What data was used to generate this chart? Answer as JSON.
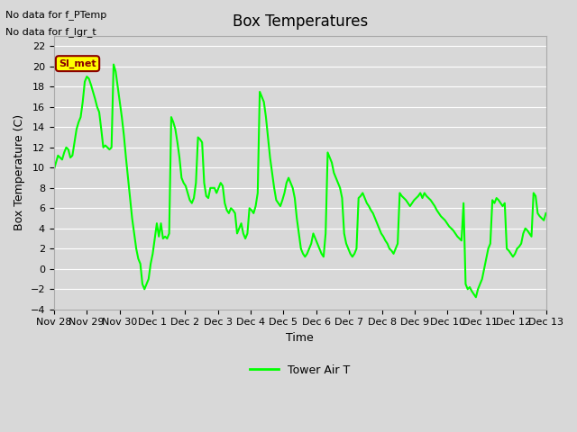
{
  "title": "Box Temperatures",
  "xlabel": "Time",
  "ylabel": "Box Temperature (C)",
  "ylim": [
    -4,
    23
  ],
  "yticks": [
    -4,
    -2,
    0,
    2,
    4,
    6,
    8,
    10,
    12,
    14,
    16,
    18,
    20,
    22
  ],
  "line_color": "#00ff00",
  "line_width": 1.5,
  "bg_color": "#e8e8e8",
  "plot_bg_color": "#d8d8d8",
  "no_data_text1": "No data for f_PTemp",
  "no_data_text2": "No data for f_lgr_t",
  "si_met_label": "Sl_met",
  "legend_label": "Tower Air T",
  "x_tick_labels": [
    "Nov 28",
    "Nov 29",
    "Nov 30",
    "Dec 1",
    "Dec 2",
    "Dec 3",
    "Dec 4",
    "Dec 5",
    "Dec 6",
    "Dec 7",
    "Dec 8",
    "Dec 9",
    "Dec 10",
    "Dec 11",
    "Dec 12",
    "Dec 13"
  ],
  "x_tick_positions": [
    0,
    1,
    2,
    3,
    4,
    5,
    6,
    7,
    8,
    9,
    10,
    11,
    12,
    13,
    14,
    15
  ],
  "time_series": [
    9.8,
    10.5,
    11.2,
    11.0,
    10.8,
    11.5,
    12.0,
    11.8,
    11.0,
    11.2,
    12.5,
    13.8,
    14.5,
    15.0,
    16.5,
    18.5,
    19.0,
    18.8,
    18.2,
    17.5,
    16.8,
    16.0,
    15.5,
    13.8,
    12.0,
    12.2,
    12.0,
    11.8,
    12.0,
    20.2,
    19.5,
    18.0,
    16.5,
    15.0,
    13.2,
    11.0,
    9.0,
    7.0,
    5.0,
    3.5,
    2.0,
    1.0,
    0.5,
    -1.5,
    -2.0,
    -1.5,
    -1.0,
    0.5,
    1.5,
    3.0,
    4.5,
    3.2,
    4.5,
    3.0,
    3.2,
    3.0,
    3.5,
    15.0,
    14.5,
    13.8,
    12.5,
    11.0,
    9.0,
    8.5,
    8.2,
    7.5,
    6.8,
    6.5,
    7.0,
    8.5,
    13.0,
    12.8,
    12.5,
    8.5,
    7.2,
    7.0,
    8.0,
    8.0,
    8.0,
    7.5,
    8.0,
    8.5,
    8.2,
    6.5,
    5.8,
    5.5,
    6.0,
    5.8,
    5.5,
    3.5,
    4.0,
    4.5,
    3.5,
    3.0,
    3.5,
    6.0,
    5.8,
    5.5,
    6.2,
    7.5,
    17.5,
    17.0,
    16.5,
    15.0,
    13.0,
    11.0,
    9.5,
    8.0,
    6.8,
    6.5,
    6.2,
    6.8,
    7.5,
    8.5,
    9.0,
    8.5,
    8.0,
    7.0,
    5.0,
    3.5,
    2.0,
    1.5,
    1.2,
    1.5,
    2.0,
    2.5,
    3.5,
    3.0,
    2.5,
    2.0,
    1.5,
    1.2,
    3.5,
    11.5,
    11.0,
    10.5,
    9.5,
    9.0,
    8.5,
    8.0,
    7.0,
    3.5,
    2.5,
    2.0,
    1.5,
    1.2,
    1.5,
    2.0,
    7.0,
    7.2,
    7.5,
    7.0,
    6.5,
    6.2,
    5.8,
    5.5,
    5.0,
    4.5,
    4.0,
    3.5,
    3.2,
    2.8,
    2.5,
    2.0,
    1.8,
    1.5,
    2.0,
    2.5,
    7.5,
    7.2,
    7.0,
    6.8,
    6.5,
    6.2,
    6.5,
    6.8,
    7.0,
    7.2,
    7.5,
    7.0,
    7.5,
    7.2,
    7.0,
    6.8,
    6.5,
    6.2,
    5.8,
    5.5,
    5.2,
    5.0,
    4.8,
    4.5,
    4.2,
    4.0,
    3.8,
    3.5,
    3.2,
    3.0,
    2.8,
    6.5,
    -1.5,
    -2.0,
    -1.8,
    -2.2,
    -2.5,
    -2.8,
    -2.0,
    -1.5,
    -1.0,
    0.0,
    1.0,
    2.0,
    2.5,
    6.8,
    6.5,
    7.0,
    6.8,
    6.5,
    6.2,
    6.5,
    2.0,
    1.8,
    1.5,
    1.2,
    1.5,
    2.0,
    2.2,
    2.5,
    3.5,
    4.0,
    3.8,
    3.5,
    3.2,
    7.5,
    7.2,
    5.5,
    5.2,
    5.0,
    4.8,
    5.5
  ]
}
